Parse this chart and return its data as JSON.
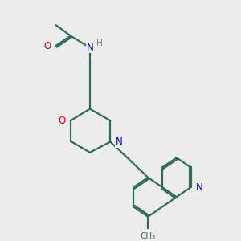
{
  "bg_color": "#ececec",
  "bond_color": "#2d6e5a",
  "bond_width": 1.6,
  "atom_colors": {
    "O": "#ff0000",
    "N": "#0000cc",
    "H": "#708090",
    "C": "#2d6e5a"
  },
  "figsize": [
    3.0,
    3.0
  ],
  "dpi": 100
}
